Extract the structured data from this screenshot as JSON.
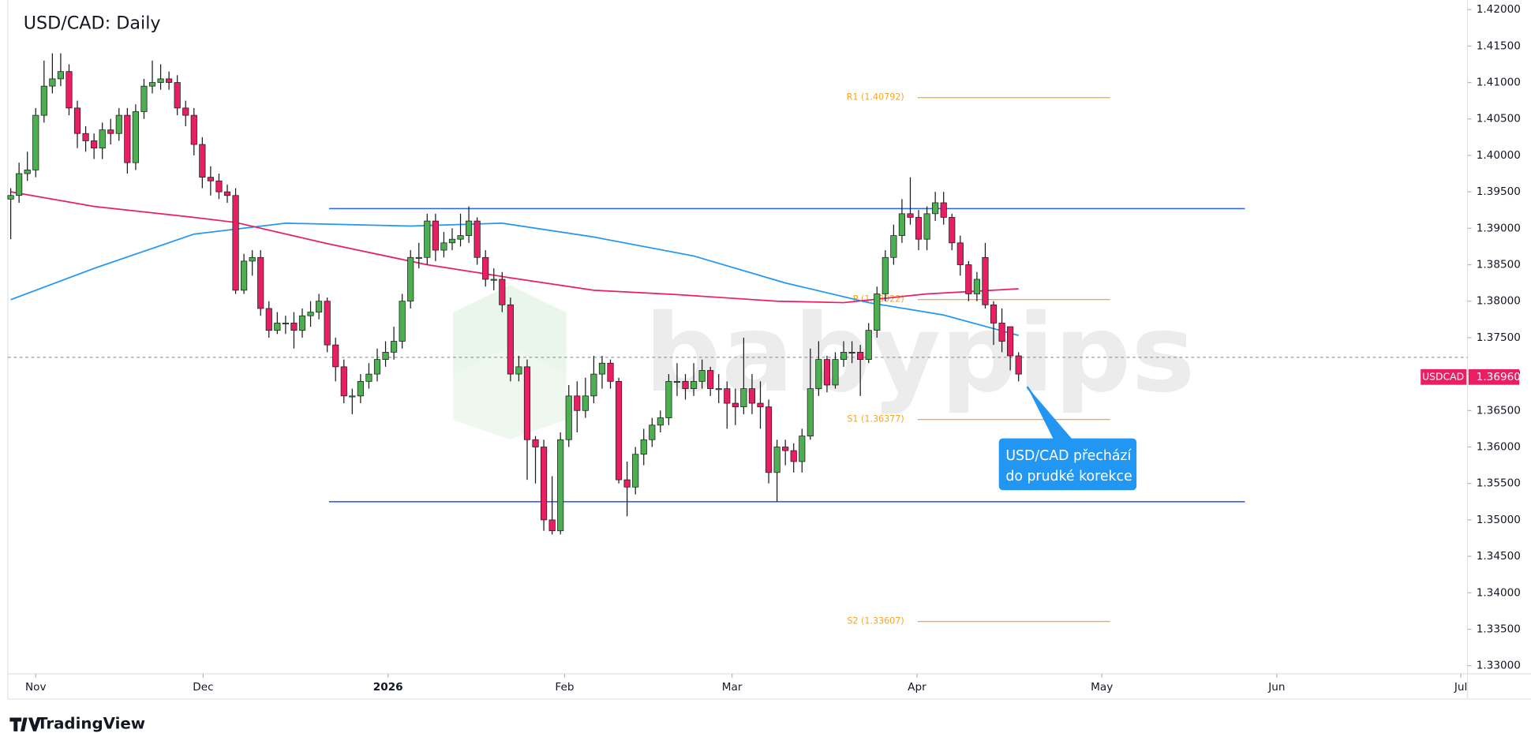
{
  "chart_data": {
    "type": "candlestick",
    "title": "USD/CAD: Daily",
    "open": [
      1.394,
      1.3945,
      1.3975,
      1.398,
      1.4055,
      1.4095,
      1.4105,
      1.4115,
      1.4065,
      1.403,
      1.402,
      1.401,
      1.4035,
      1.403,
      1.4055,
      1.399,
      1.406,
      1.4095,
      1.41,
      1.4105,
      1.41,
      1.4065,
      1.4055,
      1.4015,
      1.397,
      1.3965,
      1.395,
      1.3945,
      1.3815,
      1.3855,
      1.386,
      1.379,
      1.376,
      1.377,
      1.377,
      1.376,
      1.378,
      1.3785,
      1.38,
      1.374,
      1.371,
      1.367,
      1.367,
      1.369,
      1.37,
      1.372,
      1.373,
      1.3745,
      1.38,
      1.386,
      1.386,
      1.391,
      1.387,
      1.388,
      1.3885,
      1.389,
      1.391,
      1.386,
      1.383,
      1.383,
      1.3795,
      1.37,
      1.371,
      1.361,
      1.36,
      1.35,
      1.3485,
      1.361,
      1.367,
      1.365,
      1.367,
      1.37,
      1.3715,
      1.369,
      1.3555,
      1.3545,
      1.359,
      1.361,
      1.363,
      1.364,
      1.369,
      1.369,
      1.368,
      1.369,
      1.3705,
      1.368,
      1.368,
      1.366,
      1.3655,
      1.368,
      1.366,
      1.3655,
      1.3565,
      1.36,
      1.3595,
      1.358,
      1.3615,
      1.368,
      1.372,
      1.3685,
      1.372,
      1.373,
      1.373,
      1.372,
      1.376,
      1.381,
      1.386,
      1.389,
      1.392,
      1.3915,
      1.3885,
      1.392,
      1.3935,
      1.3915,
      1.388,
      1.385,
      1.381,
      1.386,
      1.3795,
      1.377,
      1.3765,
      1.3725
    ],
    "high": [
      1.3955,
      1.399,
      1.4005,
      1.4065,
      1.413,
      1.414,
      1.414,
      1.4125,
      1.4075,
      1.404,
      1.403,
      1.4045,
      1.405,
      1.4065,
      1.4065,
      1.407,
      1.4105,
      1.413,
      1.4125,
      1.4115,
      1.411,
      1.4075,
      1.4065,
      1.4025,
      1.3985,
      1.3975,
      1.396,
      1.3955,
      1.3865,
      1.387,
      1.387,
      1.38,
      1.3785,
      1.378,
      1.3785,
      1.379,
      1.38,
      1.381,
      1.3805,
      1.375,
      1.372,
      1.368,
      1.37,
      1.3715,
      1.3735,
      1.3745,
      1.3765,
      1.381,
      1.387,
      1.388,
      1.392,
      1.392,
      1.3895,
      1.39,
      1.392,
      1.393,
      1.3915,
      1.387,
      1.3845,
      1.384,
      1.3805,
      1.3725,
      1.372,
      1.3615,
      1.361,
      1.356,
      1.362,
      1.3685,
      1.369,
      1.3695,
      1.3725,
      1.3725,
      1.372,
      1.3695,
      1.358,
      1.36,
      1.3625,
      1.364,
      1.365,
      1.37,
      1.3715,
      1.37,
      1.3715,
      1.372,
      1.371,
      1.37,
      1.369,
      1.368,
      1.375,
      1.37,
      1.369,
      1.3665,
      1.361,
      1.361,
      1.3605,
      1.3625,
      1.3735,
      1.3745,
      1.3725,
      1.373,
      1.3745,
      1.3745,
      1.374,
      1.377,
      1.382,
      1.387,
      1.3905,
      1.394,
      1.397,
      1.3925,
      1.393,
      1.395,
      1.395,
      1.392,
      1.389,
      1.3855,
      1.384,
      1.388,
      1.38,
      1.379,
      1.3765,
      1.373
    ],
    "low": [
      1.3885,
      1.3935,
      1.3965,
      1.397,
      1.4045,
      1.4085,
      1.4095,
      1.4055,
      1.401,
      1.4005,
      1.3995,
      1.3995,
      1.4015,
      1.402,
      1.3975,
      1.398,
      1.405,
      1.4085,
      1.409,
      1.409,
      1.4055,
      1.404,
      1.4,
      1.3955,
      1.3945,
      1.394,
      1.3935,
      1.381,
      1.381,
      1.3835,
      1.378,
      1.375,
      1.3755,
      1.3755,
      1.3735,
      1.375,
      1.3765,
      1.3775,
      1.373,
      1.369,
      1.366,
      1.3645,
      1.366,
      1.368,
      1.369,
      1.371,
      1.372,
      1.3735,
      1.379,
      1.3845,
      1.385,
      1.3855,
      1.386,
      1.387,
      1.3875,
      1.388,
      1.385,
      1.382,
      1.3815,
      1.3785,
      1.369,
      1.369,
      1.3555,
      1.355,
      1.3485,
      1.348,
      1.348,
      1.36,
      1.362,
      1.364,
      1.366,
      1.368,
      1.368,
      1.355,
      1.3505,
      1.3535,
      1.3575,
      1.36,
      1.362,
      1.363,
      1.367,
      1.3665,
      1.367,
      1.368,
      1.367,
      1.366,
      1.3625,
      1.363,
      1.3645,
      1.3645,
      1.3625,
      1.355,
      1.3525,
      1.3575,
      1.3565,
      1.3565,
      1.361,
      1.367,
      1.3675,
      1.368,
      1.371,
      1.3715,
      1.367,
      1.3715,
      1.375,
      1.38,
      1.385,
      1.388,
      1.3905,
      1.387,
      1.387,
      1.391,
      1.3905,
      1.387,
      1.3835,
      1.38,
      1.38,
      1.379,
      1.374,
      1.373,
      1.3705,
      1.369
    ],
    "close": [
      1.3945,
      1.3975,
      1.398,
      1.4055,
      1.4095,
      1.4105,
      1.4115,
      1.4065,
      1.403,
      1.402,
      1.401,
      1.4035,
      1.403,
      1.4055,
      1.399,
      1.406,
      1.4095,
      1.41,
      1.4105,
      1.41,
      1.4065,
      1.4055,
      1.4015,
      1.397,
      1.3965,
      1.395,
      1.3945,
      1.3815,
      1.3855,
      1.386,
      1.379,
      1.376,
      1.377,
      1.377,
      1.376,
      1.378,
      1.3785,
      1.38,
      1.374,
      1.371,
      1.367,
      1.367,
      1.369,
      1.37,
      1.372,
      1.373,
      1.3745,
      1.38,
      1.386,
      1.386,
      1.391,
      1.387,
      1.388,
      1.3885,
      1.389,
      1.391,
      1.386,
      1.383,
      1.383,
      1.3795,
      1.37,
      1.371,
      1.361,
      1.36,
      1.35,
      1.3485,
      1.361,
      1.367,
      1.365,
      1.367,
      1.37,
      1.3715,
      1.369,
      1.3555,
      1.3545,
      1.359,
      1.361,
      1.363,
      1.364,
      1.369,
      1.369,
      1.368,
      1.369,
      1.3705,
      1.368,
      1.368,
      1.366,
      1.3655,
      1.368,
      1.366,
      1.3655,
      1.3565,
      1.36,
      1.3595,
      1.358,
      1.3615,
      1.368,
      1.372,
      1.3685,
      1.372,
      1.373,
      1.373,
      1.372,
      1.376,
      1.381,
      1.386,
      1.389,
      1.392,
      1.3915,
      1.3885,
      1.392,
      1.3935,
      1.3915,
      1.388,
      1.385,
      1.381,
      1.383,
      1.3795,
      1.377,
      1.3745,
      1.3725,
      1.37
    ],
    "up_color": "#4caf50",
    "down_color": "#e91e63",
    "series": [
      {
        "color": "#2196f3",
        "x": [
          0,
          10,
          22,
          33,
          48,
          59,
          70,
          82,
          93,
          103,
          112,
          121
        ],
        "values": [
          1.3802,
          1.3845,
          1.3892,
          1.3907,
          1.3903,
          1.3907,
          1.3888,
          1.3862,
          1.3825,
          1.3798,
          1.3781,
          1.3753
        ]
      },
      {
        "color": "#e91e63",
        "x": [
          0,
          10,
          22,
          27,
          38,
          50,
          60,
          70,
          80,
          92,
          100,
          110,
          121
        ],
        "values": [
          1.395,
          1.393,
          1.3915,
          1.3908,
          1.3879,
          1.385,
          1.3832,
          1.3815,
          1.3809,
          1.38,
          1.3798,
          1.381,
          1.3817
        ]
      }
    ],
    "levels": [
      {
        "value": 1.3927,
        "color": "#2962ff"
      },
      {
        "value": 1.3525,
        "color": "#2962ff"
      }
    ],
    "pivots": [
      {
        "label": "R1 (1.40792)",
        "value": 1.40792
      },
      {
        "label": "P (1.38022)",
        "value": 1.38022
      },
      {
        "label": "S1 (1.36377)",
        "value": 1.36377
      },
      {
        "label": "S2 (1.33607)",
        "value": 1.33607
      }
    ],
    "pivot_color": "#f5a623",
    "dashed_line": 1.3723,
    "last_price": {
      "symbol": "USDCAD",
      "value": 1.3696,
      "label": "1.36960"
    },
    "annotation": [
      "USD/CAD přechází",
      "do prudké korekce"
    ],
    "watermark": "babypips",
    "brand": "TradingView",
    "xlim": [
      -0.35,
      174.9
    ],
    "xticks": [
      {
        "value": 3,
        "label": "Nov"
      },
      {
        "value": 23.1,
        "label": "Dec"
      },
      {
        "value": 45.3,
        "label": "2026"
      },
      {
        "value": 66.5,
        "label": "Feb"
      },
      {
        "value": 86.6,
        "label": "Mar"
      },
      {
        "value": 108.8,
        "label": "Apr"
      },
      {
        "value": 131,
        "label": "May"
      },
      {
        "value": 152,
        "label": "Jun"
      },
      {
        "value": 174.1,
        "label": "Jul"
      }
    ],
    "ylim": [
      1.3289,
      1.4213
    ],
    "yticks": [
      {
        "value": 1.33,
        "label": "1.33000"
      },
      {
        "value": 1.335,
        "label": "1.33500"
      },
      {
        "value": 1.34,
        "label": "1.34000"
      },
      {
        "value": 1.345,
        "label": "1.34500"
      },
      {
        "value": 1.35,
        "label": "1.35000"
      },
      {
        "value": 1.355,
        "label": "1.35500"
      },
      {
        "value": 1.36,
        "label": "1.36000"
      },
      {
        "value": 1.365,
        "label": "1.36500"
      },
      {
        "value": 1.37,
        "label": "1.37000"
      },
      {
        "value": 1.375,
        "label": "1.37500"
      },
      {
        "value": 1.38,
        "label": "1.38000"
      },
      {
        "value": 1.385,
        "label": "1.38500"
      },
      {
        "value": 1.39,
        "label": "1.39000"
      },
      {
        "value": 1.395,
        "label": "1.39500"
      },
      {
        "value": 1.4,
        "label": "1.40000"
      },
      {
        "value": 1.405,
        "label": "1.40500"
      },
      {
        "value": 1.41,
        "label": "1.41000"
      },
      {
        "value": 1.415,
        "label": "1.41500"
      },
      {
        "value": 1.42,
        "label": "1.42000"
      }
    ],
    "grid": false
  }
}
